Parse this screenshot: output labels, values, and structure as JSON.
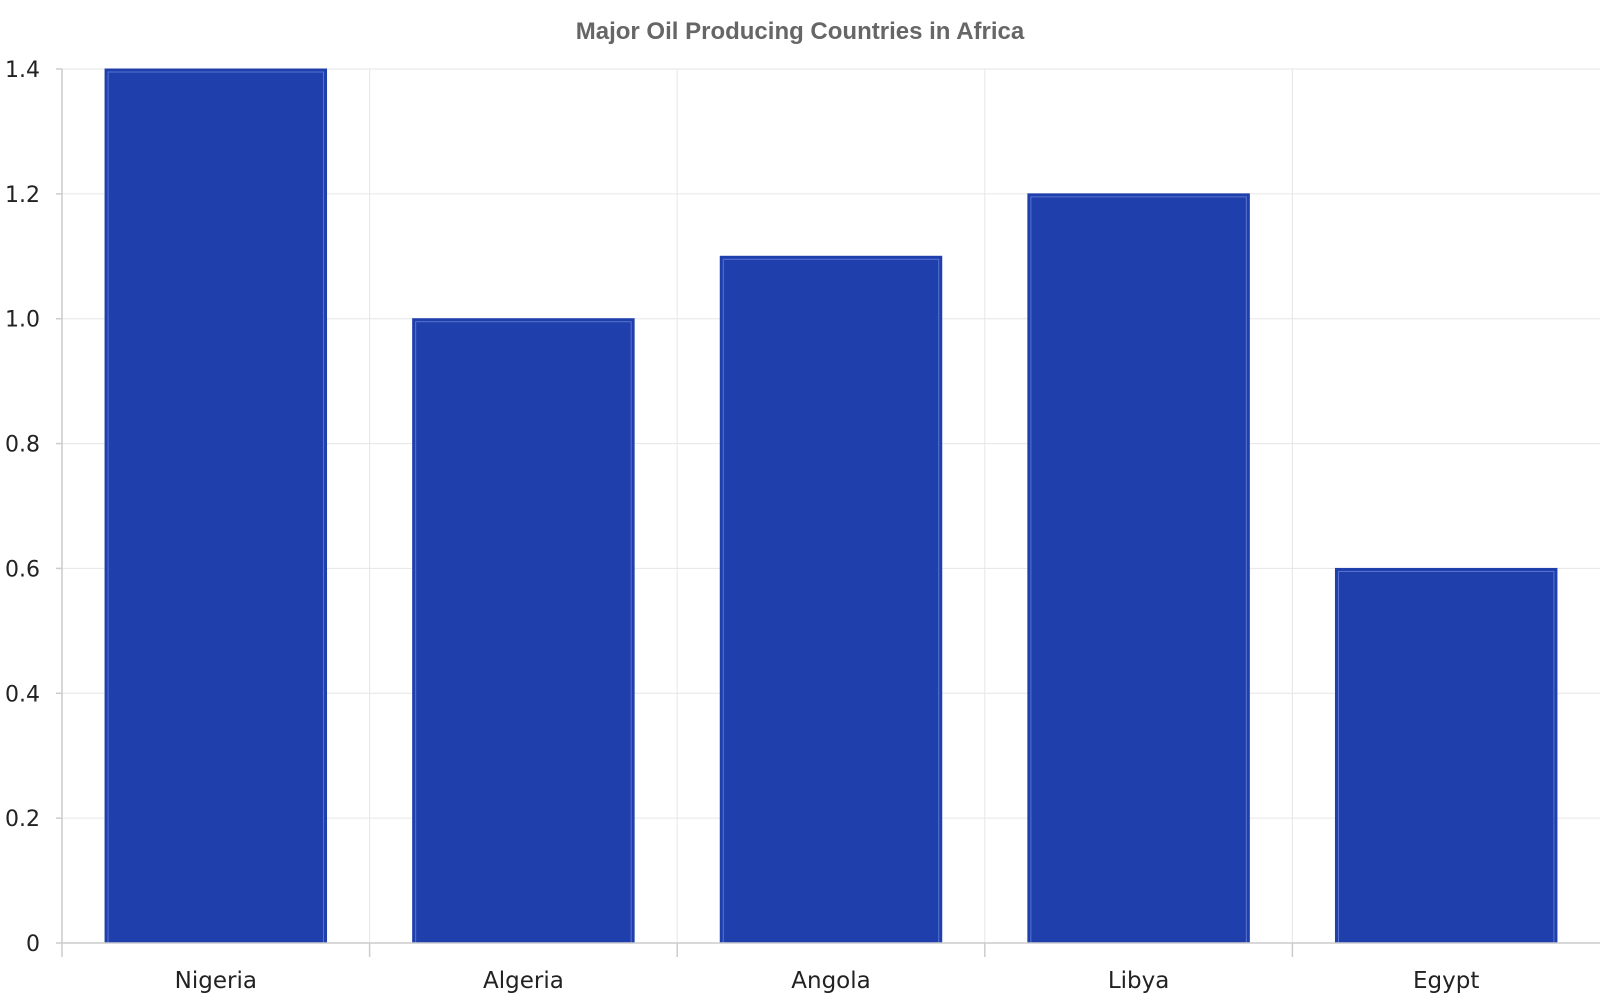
{
  "chart_data": {
    "type": "bar",
    "title": "Major Oil Producing Countries in Africa",
    "xlabel": "",
    "ylabel": "",
    "categories": [
      "Nigeria",
      "Algeria",
      "Angola",
      "Libya",
      "Egypt"
    ],
    "series": [
      {
        "values": [
          1.4,
          1.0,
          1.1,
          1.2,
          0.6
        ]
      }
    ],
    "ylim": [
      0,
      1.4
    ],
    "yticks": [
      "0",
      "0.2",
      "0.4",
      "0.6",
      "0.8",
      "1.0",
      "1.2",
      "1.4"
    ],
    "grid": true,
    "legend": "none",
    "colors": {
      "bar": "#1f3fac",
      "bar_inner_stroke": "#5a74d0",
      "grid": "#e6e6e6",
      "axis": "#cccccc",
      "tick_text": "#222222"
    }
  }
}
